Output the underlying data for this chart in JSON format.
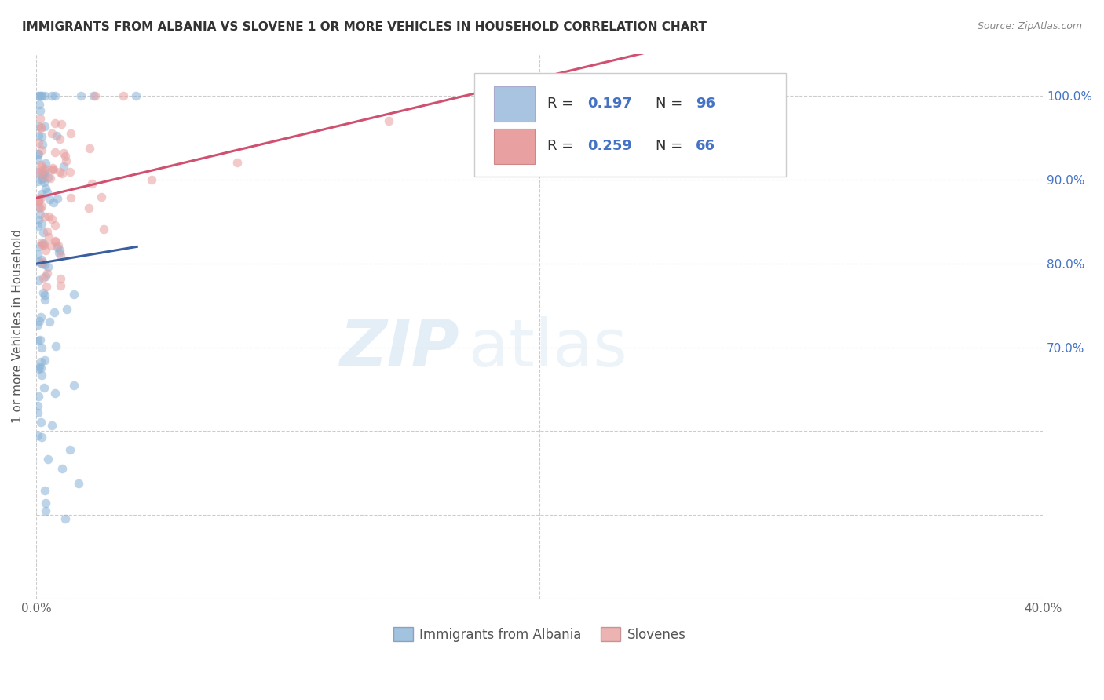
{
  "title": "IMMIGRANTS FROM ALBANIA VS SLOVENE 1 OR MORE VEHICLES IN HOUSEHOLD CORRELATION CHART",
  "source": "Source: ZipAtlas.com",
  "ylabel": "1 or more Vehicles in Household",
  "xlim": [
    0.0,
    0.4
  ],
  "ylim": [
    0.4,
    1.05
  ],
  "xtick_positions": [
    0.0,
    0.05,
    0.1,
    0.15,
    0.2,
    0.25,
    0.3,
    0.35,
    0.4
  ],
  "xticklabels": [
    "0.0%",
    "",
    "",
    "",
    "",
    "",
    "",
    "",
    "40.0%"
  ],
  "ytick_positions": [
    0.4,
    0.5,
    0.6,
    0.7,
    0.8,
    0.9,
    1.0
  ],
  "ytick_labels_right": [
    "",
    "",
    "",
    "70.0%",
    "80.0%",
    "90.0%",
    "100.0%"
  ],
  "albania_color": "#8ab4d8",
  "slovene_color": "#e8a0a0",
  "marker_size": 70,
  "alpha": 0.55,
  "R_albania": 0.197,
  "N_albania": 96,
  "R_slovene": 0.259,
  "N_slovene": 66,
  "trend_albania_color": "#3a5fa0",
  "trend_slovene_color": "#d05070",
  "legend_label_albania": "Immigrants from Albania",
  "legend_label_slovene": "Slovenes",
  "legend_box_color": "#a8c4e0",
  "legend_pink_color": "#e8a0a0",
  "watermark_color": "#ddeeff",
  "grid_color": "#cccccc"
}
